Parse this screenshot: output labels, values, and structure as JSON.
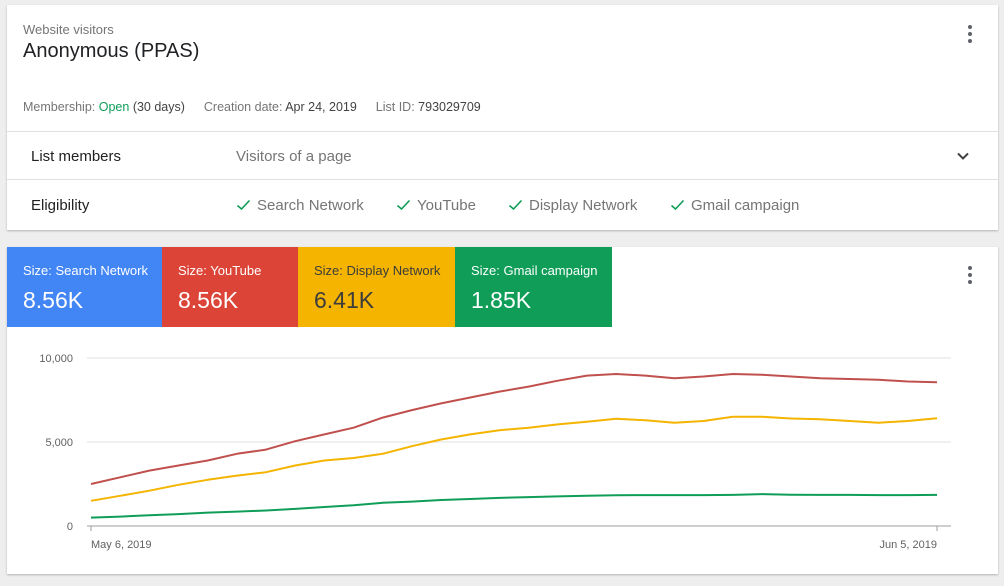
{
  "info_card": {
    "subtitle": "Website visitors",
    "title": "Anonymous (PPAS)",
    "meta": {
      "membership_label": "Membership:",
      "membership_value": "Open",
      "membership_duration": "(30 days)",
      "creation_label": "Creation date:",
      "creation_value": "Apr 24, 2019",
      "list_id_label": "List ID:",
      "list_id_value": "793029709"
    },
    "list_members": {
      "label": "List members",
      "value": "Visitors of a page"
    },
    "eligibility": {
      "label": "Eligibility",
      "items": [
        "Search Network",
        "YouTube",
        "Display Network",
        "Gmail campaign"
      ]
    }
  },
  "size_tiles": [
    {
      "label": "Size: Search Network",
      "value": "8.56K",
      "color": "#4285f4"
    },
    {
      "label": "Size: YouTube",
      "value": "8.56K",
      "color": "#db4437"
    },
    {
      "label": "Size: Display Network",
      "value": "6.41K",
      "color": "#f4b400"
    },
    {
      "label": "Size: Gmail campaign",
      "value": "1.85K",
      "color": "#0f9d58"
    }
  ],
  "icons": {
    "more": "more-vert-icon",
    "expand": "chevron-down-icon",
    "check": "check-icon"
  },
  "colors": {
    "open_status": "#0f9d58",
    "check": "#0f9d58"
  },
  "chart_data": {
    "type": "line",
    "ylim": [
      0,
      10000
    ],
    "yticks": [
      0,
      5000,
      10000
    ],
    "ytick_labels": [
      "0",
      "5,000",
      "10,000"
    ],
    "xtick_labels": [
      "May 6, 2019",
      "Jun 5, 2019"
    ],
    "grid": true,
    "series": [
      {
        "color": "#c0504d",
        "values": [
          2500,
          2900,
          3300,
          3600,
          3900,
          4300,
          4550,
          5050,
          5450,
          5850,
          6450,
          6900,
          7300,
          7650,
          8000,
          8300,
          8650,
          8950,
          9050,
          8950,
          8800,
          8900,
          9050,
          9000,
          8900,
          8800,
          8750,
          8700,
          8600,
          8560
        ]
      },
      {
        "color": "#f4b400",
        "values": [
          1500,
          1800,
          2100,
          2450,
          2750,
          3000,
          3200,
          3600,
          3900,
          4050,
          4300,
          4750,
          5150,
          5450,
          5700,
          5850,
          6050,
          6200,
          6380,
          6300,
          6150,
          6250,
          6500,
          6500,
          6400,
          6350,
          6250,
          6150,
          6250,
          6410
        ]
      },
      {
        "color": "#0f9d58",
        "values": [
          500,
          560,
          640,
          710,
          800,
          860,
          920,
          1020,
          1130,
          1230,
          1380,
          1450,
          1550,
          1610,
          1670,
          1720,
          1760,
          1800,
          1830,
          1840,
          1840,
          1840,
          1850,
          1900,
          1860,
          1850,
          1850,
          1840,
          1840,
          1850
        ]
      }
    ]
  }
}
